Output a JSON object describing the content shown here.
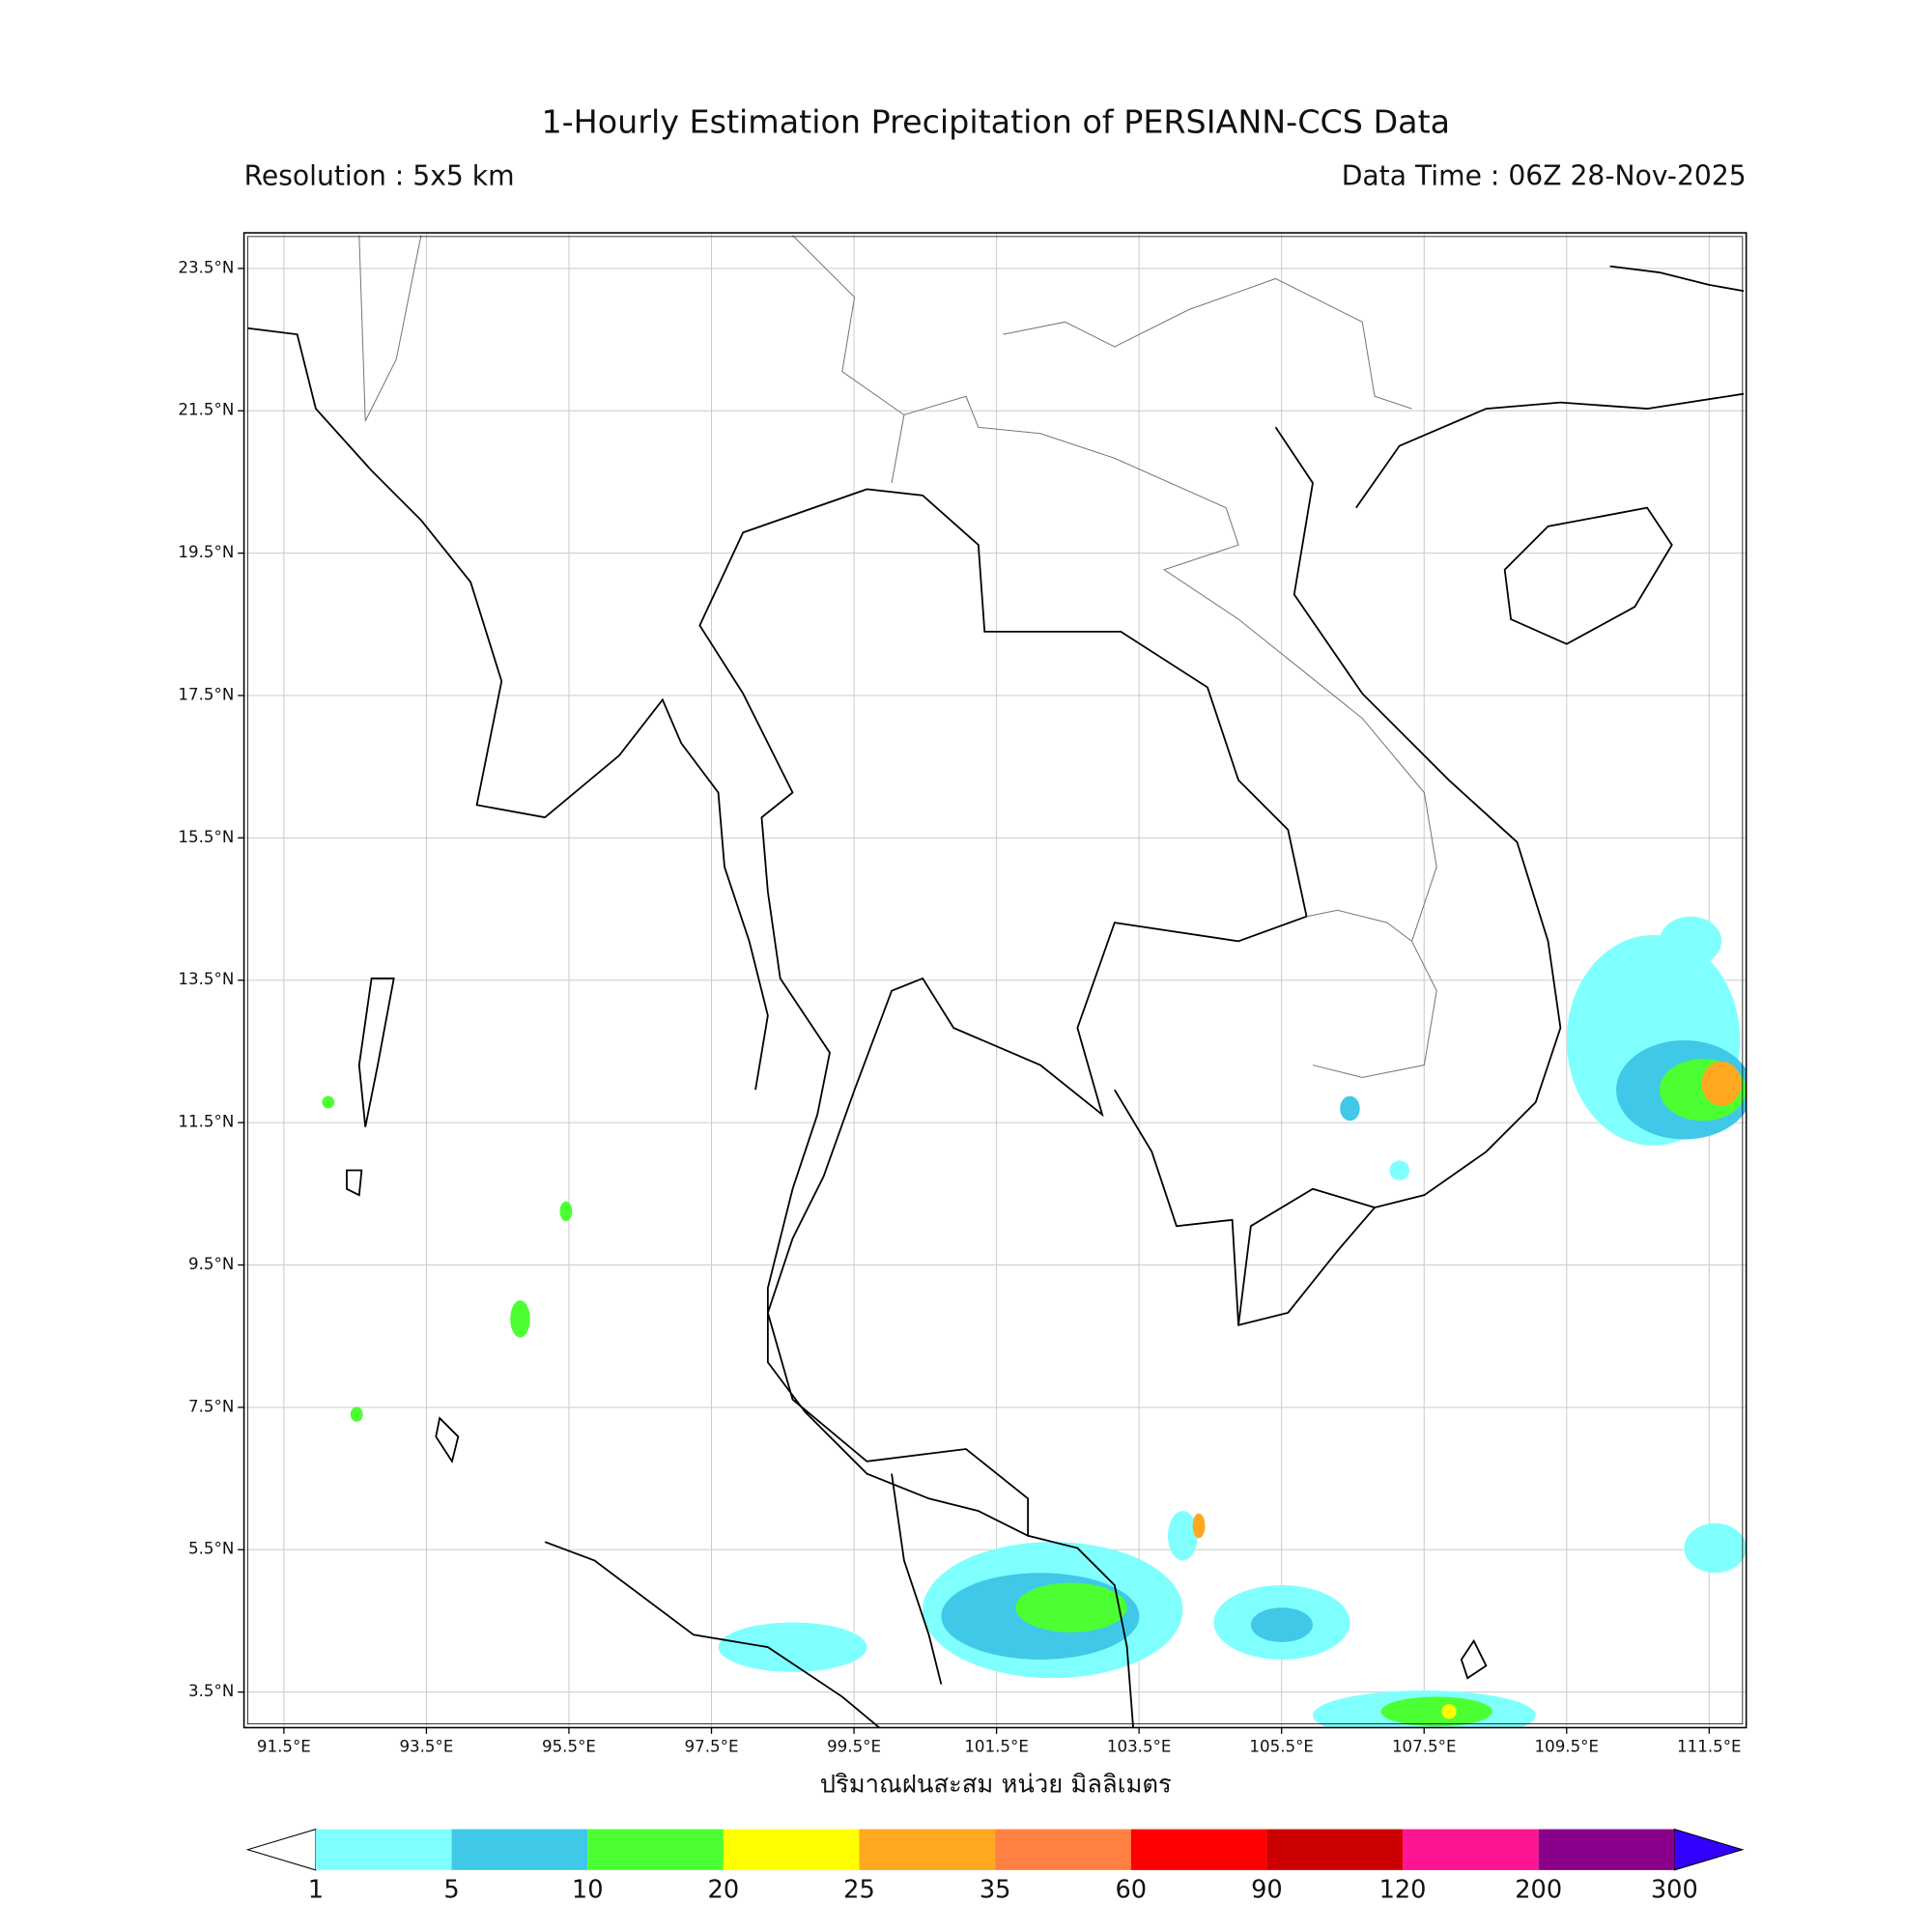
{
  "header": {
    "title": "1-Hourly Estimation Precipitation of PERSIANN-CCS Data",
    "resolution": "Resolution : 5x5 km",
    "data_time": "Data Time : 06Z 28-Nov-2025"
  },
  "map": {
    "xlim": [
      90.94,
      112.02
    ],
    "ylim": [
      3.0,
      24.0
    ],
    "xticks": [
      {
        "value": 91.5,
        "label": "91.5°E"
      },
      {
        "value": 93.5,
        "label": "93.5°E"
      },
      {
        "value": 95.5,
        "label": "95.5°E"
      },
      {
        "value": 97.5,
        "label": "97.5°E"
      },
      {
        "value": 99.5,
        "label": "99.5°E"
      },
      {
        "value": 101.5,
        "label": "101.5°E"
      },
      {
        "value": 103.5,
        "label": "103.5°E"
      },
      {
        "value": 105.5,
        "label": "105.5°E"
      },
      {
        "value": 107.5,
        "label": "107.5°E"
      },
      {
        "value": 109.5,
        "label": "109.5°E"
      },
      {
        "value": 111.5,
        "label": "111.5°E"
      }
    ],
    "yticks": [
      {
        "value": 3.5,
        "label": "3.5°N"
      },
      {
        "value": 5.5,
        "label": "5.5°N"
      },
      {
        "value": 7.5,
        "label": "7.5°N"
      },
      {
        "value": 9.5,
        "label": "9.5°N"
      },
      {
        "value": 11.5,
        "label": "11.5°N"
      },
      {
        "value": 13.5,
        "label": "13.5°N"
      },
      {
        "value": 15.5,
        "label": "15.5°N"
      },
      {
        "value": 17.5,
        "label": "17.5°N"
      },
      {
        "value": 19.5,
        "label": "19.5°N"
      },
      {
        "value": 21.5,
        "label": "21.5°N"
      },
      {
        "value": 23.5,
        "label": "23.5°N"
      }
    ],
    "xlabel": "ปริมาณฝนสะสม หน่วย มิลลิเมตร"
  },
  "colorbar": {
    "levels": [
      1,
      5,
      10,
      20,
      25,
      35,
      60,
      90,
      120,
      200,
      300
    ],
    "colors": [
      "#80ffff",
      "#40c8e8",
      "#4cff33",
      "#ffff00",
      "#ffa820",
      "#ff8040",
      "#ff0000",
      "#cc0000",
      "#ff1493",
      "#8b008b"
    ],
    "under_color": "#ffffff",
    "over_color": "#3300ff"
  }
}
